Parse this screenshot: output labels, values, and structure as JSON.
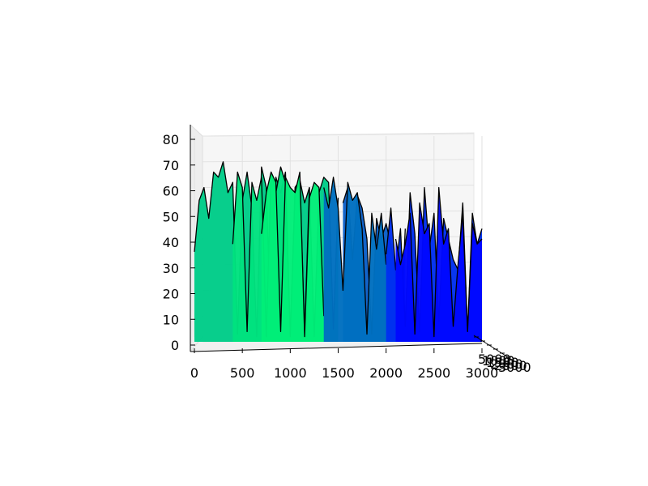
{
  "chart_data": {
    "type": "area",
    "projection": "3d",
    "title": "",
    "xlabel": "",
    "ylabel": "",
    "zlabel": "",
    "grid": true,
    "x_ticks": [
      "0",
      "500",
      "1000",
      "1500",
      "2000",
      "2500",
      "3000"
    ],
    "z_ticks": [
      "0",
      "10",
      "20",
      "30",
      "40",
      "50",
      "60",
      "70",
      "80"
    ],
    "depth_ticks": [
      "5000",
      "1000",
      "1500",
      "2000",
      "2500",
      "3000"
    ],
    "xlim": [
      0,
      3000
    ],
    "zlim": [
      0,
      80
    ],
    "colormap": "winter",
    "series": [
      {
        "color": "#00cc88",
        "x": [
          0,
          50,
          100,
          150,
          200,
          250,
          300,
          350,
          400,
          450,
          500,
          550,
          600,
          650,
          700,
          750,
          800,
          850,
          900,
          950,
          1000,
          1050,
          1100,
          1150,
          1200,
          1250,
          1300,
          1350,
          1400,
          1450,
          1500
        ],
        "values": [
          35,
          55,
          60,
          48,
          66,
          64,
          70,
          58,
          62,
          3,
          55,
          66,
          52,
          2,
          68,
          60,
          1,
          64,
          58,
          66,
          2,
          60,
          63,
          54,
          60,
          2,
          58,
          64,
          62,
          5,
          56
        ]
      },
      {
        "color": "#00e27f",
        "x": [
          400,
          450,
          500,
          550,
          600,
          650,
          700,
          750,
          800,
          850,
          900,
          950,
          1000,
          1050,
          1100,
          1150,
          1200
        ],
        "values": [
          38,
          66,
          60,
          4,
          62,
          55,
          64,
          2,
          66,
          58,
          68,
          62,
          2,
          58,
          62,
          3,
          60
        ]
      },
      {
        "color": "#00ee78",
        "x": [
          700,
          750,
          800,
          850,
          900,
          950,
          1000,
          1050,
          1100,
          1150,
          1200,
          1250,
          1300,
          1350
        ],
        "values": [
          42,
          58,
          66,
          62,
          4,
          64,
          60,
          58,
          66,
          2,
          56,
          62,
          60,
          10
        ]
      },
      {
        "color": "#0a5fc8",
        "x": [
          1550,
          1600,
          1650,
          1700,
          1750,
          1800,
          1850,
          1900,
          1950,
          2000,
          2050,
          2100,
          2150,
          2200
        ],
        "values": [
          54,
          60,
          32,
          57,
          52,
          40,
          3,
          48,
          40,
          46,
          38,
          26,
          4,
          44
        ]
      },
      {
        "color": "#0070c0",
        "x": [
          1350,
          1400,
          1450,
          1500,
          1550,
          1600,
          1650,
          1700,
          1750,
          1800,
          1850,
          1900,
          1950,
          2000
        ],
        "values": [
          60,
          52,
          64,
          52,
          20,
          62,
          55,
          58,
          44,
          3,
          50,
          36,
          50,
          30
        ]
      },
      {
        "color": "#0030f0",
        "x": [
          2000,
          2050,
          2100,
          2150,
          2200,
          2250,
          2300,
          2350,
          2400,
          2450,
          2500,
          2550,
          2600,
          2650,
          2700,
          2750,
          2800,
          2850,
          2900,
          2950,
          3000
        ],
        "values": [
          34,
          52,
          28,
          44,
          6,
          58,
          42,
          4,
          60,
          36,
          50,
          8,
          48,
          40,
          32,
          28,
          54,
          4,
          50,
          38,
          44
        ]
      },
      {
        "color": "#0008ff",
        "x": [
          2100,
          2150,
          2200,
          2250,
          2300,
          2350,
          2400,
          2450,
          2500,
          2550,
          2600,
          2650,
          2700,
          2750,
          2800,
          2850,
          2900,
          2950,
          3000
        ],
        "values": [
          40,
          30,
          38,
          50,
          3,
          54,
          42,
          46,
          2,
          60,
          38,
          44,
          6,
          30,
          50,
          4,
          46,
          38,
          40
        ]
      }
    ]
  }
}
